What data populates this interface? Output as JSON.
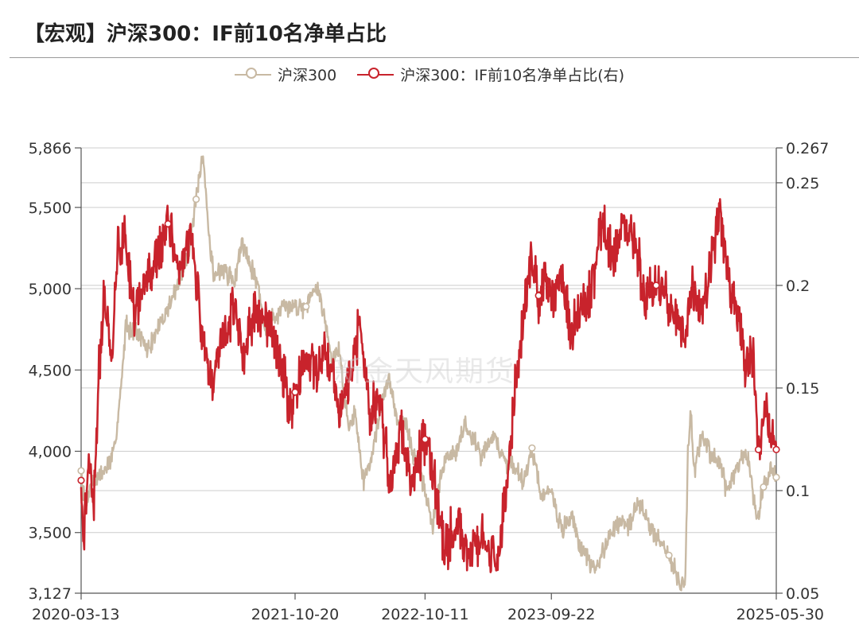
{
  "title": "【宏观】沪深300：IF前10名净单占比",
  "watermark": "新金天风期货",
  "colors": {
    "csi300": "#c8b9a3",
    "if_ratio": "#c8232c",
    "grid": "#cccccc",
    "axis": "#555555"
  },
  "legend": [
    {
      "name": "沪深300",
      "color": "#c8b9a3"
    },
    {
      "name": "沪深300：IF前10名净单占比(右)",
      "color": "#c8232c"
    }
  ],
  "chart_data": {
    "type": "line",
    "x_start": "2020-03-13",
    "x_end": "2025-05-30",
    "x_ticks": [
      "2020-03-13",
      "2021-10-20",
      "2022-10-11",
      "2023-09-22",
      "2025-05-30"
    ],
    "y_left_ticks": [
      "3,127",
      "3,500",
      "4,000",
      "4,500",
      "5,000",
      "5,500",
      "5,866"
    ],
    "y_right_ticks": [
      "0.05",
      "0.1",
      "0.15",
      "0.2",
      "0.25",
      "0.267"
    ],
    "y_left_range": [
      3127,
      5866
    ],
    "y_right_range": [
      0.05,
      0.267
    ],
    "series": [
      {
        "name": "沪深300",
        "axis": "left",
        "points": [
          [
            "2020-03-13",
            3880
          ],
          [
            "2020-03-23",
            3680
          ],
          [
            "2020-04-10",
            3800
          ],
          [
            "2020-05-15",
            3870
          ],
          [
            "2020-06-12",
            4000
          ],
          [
            "2020-07-03",
            4450
          ],
          [
            "2020-07-13",
            4780
          ],
          [
            "2020-08-14",
            4730
          ],
          [
            "2020-09-11",
            4620
          ],
          [
            "2020-10-16",
            4780
          ],
          [
            "2020-11-13",
            4920
          ],
          [
            "2020-12-04",
            5030
          ],
          [
            "2020-12-31",
            5210
          ],
          [
            "2021-01-22",
            5550
          ],
          [
            "2021-02-10",
            5800
          ],
          [
            "2021-02-26",
            5340
          ],
          [
            "2021-03-12",
            5070
          ],
          [
            "2021-04-02",
            5130
          ],
          [
            "2021-05-07",
            5040
          ],
          [
            "2021-05-28",
            5300
          ],
          [
            "2021-06-18",
            5160
          ],
          [
            "2021-07-09",
            5040
          ],
          [
            "2021-07-28",
            4750
          ],
          [
            "2021-08-20",
            4820
          ],
          [
            "2021-09-17",
            4870
          ],
          [
            "2021-10-20",
            4900
          ],
          [
            "2021-11-19",
            4890
          ],
          [
            "2021-12-10",
            5020
          ],
          [
            "2021-12-31",
            4940
          ],
          [
            "2022-01-28",
            4560
          ],
          [
            "2022-02-18",
            4620
          ],
          [
            "2022-03-15",
            4150
          ],
          [
            "2022-04-01",
            4250
          ],
          [
            "2022-04-26",
            3810
          ],
          [
            "2022-05-20",
            4000
          ],
          [
            "2022-06-17",
            4320
          ],
          [
            "2022-07-05",
            4450
          ],
          [
            "2022-07-29",
            4180
          ],
          [
            "2022-08-19",
            4160
          ],
          [
            "2022-09-16",
            3930
          ],
          [
            "2022-10-11",
            3760
          ],
          [
            "2022-10-31",
            3530
          ],
          [
            "2022-11-18",
            3790
          ],
          [
            "2022-12-09",
            3970
          ],
          [
            "2023-01-06",
            4000
          ],
          [
            "2023-01-28",
            4170
          ],
          [
            "2023-02-17",
            4090
          ],
          [
            "2023-03-17",
            3970
          ],
          [
            "2023-04-14",
            4110
          ],
          [
            "2023-05-19",
            3930
          ],
          [
            "2023-06-16",
            3910
          ],
          [
            "2023-07-07",
            3810
          ],
          [
            "2023-07-31",
            4020
          ],
          [
            "2023-08-25",
            3730
          ],
          [
            "2023-09-22",
            3740
          ],
          [
            "2023-10-23",
            3510
          ],
          [
            "2023-11-17",
            3600
          ],
          [
            "2023-12-15",
            3380
          ],
          [
            "2024-01-22",
            3270
          ],
          [
            "2024-02-08",
            3370
          ],
          [
            "2024-03-15",
            3560
          ],
          [
            "2024-04-19",
            3540
          ],
          [
            "2024-05-20",
            3690
          ],
          [
            "2024-06-14",
            3550
          ],
          [
            "2024-07-12",
            3460
          ],
          [
            "2024-08-09",
            3360
          ],
          [
            "2024-09-13",
            3170
          ],
          [
            "2024-09-23",
            3200
          ],
          [
            "2024-09-30",
            4000
          ],
          [
            "2024-10-08",
            4250
          ],
          [
            "2024-10-17",
            3880
          ],
          [
            "2024-11-08",
            4100
          ],
          [
            "2024-12-06",
            3960
          ],
          [
            "2024-12-31",
            3930
          ],
          [
            "2025-01-13",
            3750
          ],
          [
            "2025-02-14",
            3920
          ],
          [
            "2025-03-14",
            3960
          ],
          [
            "2025-04-07",
            3580
          ],
          [
            "2025-04-25",
            3780
          ],
          [
            "2025-05-15",
            3910
          ],
          [
            "2025-05-30",
            3840
          ]
        ]
      },
      {
        "name": "沪深300：IF前10名净单占比(右)",
        "axis": "right",
        "points": [
          [
            "2020-03-13",
            0.105
          ],
          [
            "2020-03-20",
            0.078
          ],
          [
            "2020-04-03",
            0.115
          ],
          [
            "2020-04-17",
            0.09
          ],
          [
            "2020-05-01",
            0.16
          ],
          [
            "2020-05-15",
            0.195
          ],
          [
            "2020-06-05",
            0.165
          ],
          [
            "2020-06-19",
            0.215
          ],
          [
            "2020-07-10",
            0.225
          ],
          [
            "2020-08-07",
            0.185
          ],
          [
            "2020-09-04",
            0.2
          ],
          [
            "2020-10-09",
            0.215
          ],
          [
            "2020-11-06",
            0.23
          ],
          [
            "2020-12-04",
            0.205
          ],
          [
            "2021-01-08",
            0.225
          ],
          [
            "2021-02-05",
            0.18
          ],
          [
            "2021-03-05",
            0.15
          ],
          [
            "2021-04-02",
            0.175
          ],
          [
            "2021-05-07",
            0.19
          ],
          [
            "2021-06-04",
            0.168
          ],
          [
            "2021-07-02",
            0.185
          ],
          [
            "2021-08-06",
            0.182
          ],
          [
            "2021-09-03",
            0.168
          ],
          [
            "2021-10-08",
            0.14
          ],
          [
            "2021-10-20",
            0.148
          ],
          [
            "2021-11-19",
            0.165
          ],
          [
            "2021-12-17",
            0.158
          ],
          [
            "2022-01-14",
            0.17
          ],
          [
            "2022-02-18",
            0.14
          ],
          [
            "2022-03-18",
            0.155
          ],
          [
            "2022-04-15",
            0.18
          ],
          [
            "2022-05-13",
            0.135
          ],
          [
            "2022-06-10",
            0.145
          ],
          [
            "2022-07-08",
            0.1
          ],
          [
            "2022-08-05",
            0.13
          ],
          [
            "2022-09-02",
            0.105
          ],
          [
            "2022-10-11",
            0.125
          ],
          [
            "2022-11-04",
            0.105
          ],
          [
            "2022-12-02",
            0.07
          ],
          [
            "2023-01-06",
            0.085
          ],
          [
            "2023-02-03",
            0.068
          ],
          [
            "2023-03-03",
            0.075
          ],
          [
            "2023-03-31",
            0.072
          ],
          [
            "2023-04-28",
            0.065
          ],
          [
            "2023-05-26",
            0.11
          ],
          [
            "2023-06-16",
            0.15
          ],
          [
            "2023-07-07",
            0.185
          ],
          [
            "2023-07-28",
            0.215
          ],
          [
            "2023-08-18",
            0.195
          ],
          [
            "2023-09-08",
            0.2
          ],
          [
            "2023-09-22",
            0.192
          ],
          [
            "2023-10-20",
            0.205
          ],
          [
            "2023-11-17",
            0.175
          ],
          [
            "2023-12-15",
            0.19
          ],
          [
            "2024-01-19",
            0.205
          ],
          [
            "2024-02-09",
            0.23
          ],
          [
            "2024-03-08",
            0.215
          ],
          [
            "2024-04-05",
            0.23
          ],
          [
            "2024-05-10",
            0.22
          ],
          [
            "2024-06-07",
            0.195
          ],
          [
            "2024-07-05",
            0.2
          ],
          [
            "2024-08-02",
            0.195
          ],
          [
            "2024-08-30",
            0.185
          ],
          [
            "2024-09-20",
            0.17
          ],
          [
            "2024-10-11",
            0.2
          ],
          [
            "2024-11-08",
            0.185
          ],
          [
            "2024-12-06",
            0.215
          ],
          [
            "2024-12-27",
            0.235
          ],
          [
            "2025-01-17",
            0.205
          ],
          [
            "2025-02-14",
            0.185
          ],
          [
            "2025-03-07",
            0.16
          ],
          [
            "2025-03-28",
            0.165
          ],
          [
            "2025-04-11",
            0.12
          ],
          [
            "2025-04-25",
            0.14
          ],
          [
            "2025-05-16",
            0.125
          ],
          [
            "2025-05-30",
            0.12
          ]
        ]
      }
    ]
  }
}
